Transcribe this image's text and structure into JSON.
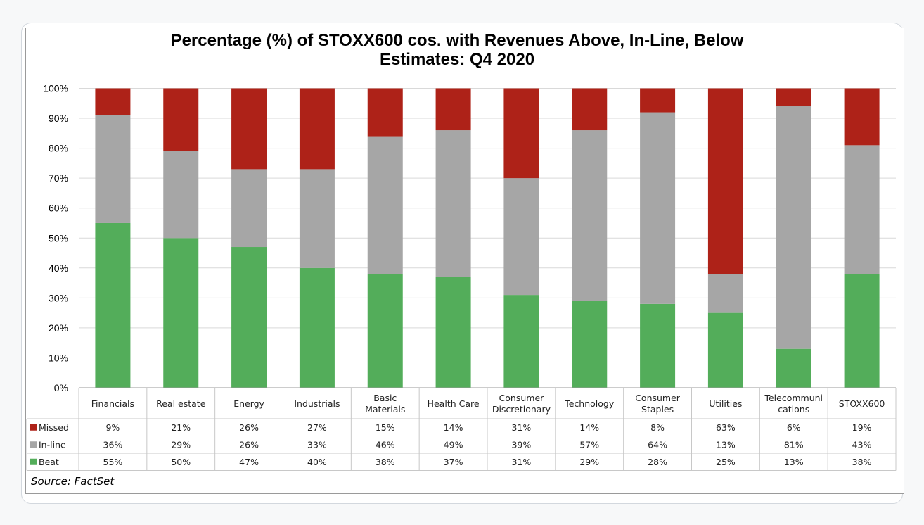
{
  "title_line1": "Percentage (%) of STOXX600 cos. with Revenues Above, In-Line, Below",
  "title_line2": "Estimates: Q4 2020",
  "source": "Source: FactSet",
  "colors": {
    "missed": "#ae2218",
    "inline": "#a6a6a6",
    "beat": "#53ad5a",
    "grid": "#d9d9d9"
  },
  "chart_data": {
    "type": "bar",
    "stacked": true,
    "title": "Percentage (%) of STOXX600 cos. with Revenues Above, In-Line, Below Estimates: Q4 2020",
    "categories": [
      [
        "Financials"
      ],
      [
        "Real estate"
      ],
      [
        "Energy"
      ],
      [
        "Industrials"
      ],
      [
        "Basic",
        "Materials"
      ],
      [
        "Health Care"
      ],
      [
        "Consumer",
        "Discretionary"
      ],
      [
        "Technology"
      ],
      [
        "Consumer",
        "Staples"
      ],
      [
        "Utilities"
      ],
      [
        "Telecommuni",
        "cations"
      ],
      [
        "STOXX600"
      ]
    ],
    "ylim": [
      0,
      100
    ],
    "yticks": [
      "0%",
      "10%",
      "20%",
      "30%",
      "40%",
      "50%",
      "60%",
      "70%",
      "80%",
      "90%",
      "100%"
    ],
    "series": [
      {
        "name": "Missed",
        "color": "#ae2218",
        "values": [
          9,
          21,
          26,
          27,
          15,
          14,
          31,
          14,
          8,
          63,
          6,
          19
        ],
        "labels": [
          "9%",
          "21%",
          "26%",
          "27%",
          "15%",
          "14%",
          "31%",
          "14%",
          "8%",
          "63%",
          "6%",
          "19%"
        ]
      },
      {
        "name": "In-line",
        "color": "#a6a6a6",
        "values": [
          36,
          29,
          26,
          33,
          46,
          49,
          39,
          57,
          64,
          13,
          81,
          43
        ],
        "labels": [
          "36%",
          "29%",
          "26%",
          "33%",
          "46%",
          "49%",
          "39%",
          "57%",
          "64%",
          "13%",
          "81%",
          "43%"
        ]
      },
      {
        "name": "Beat",
        "color": "#53ad5a",
        "values": [
          55,
          50,
          47,
          40,
          38,
          37,
          31,
          29,
          28,
          25,
          13,
          38
        ],
        "labels": [
          "55%",
          "50%",
          "47%",
          "40%",
          "38%",
          "37%",
          "31%",
          "29%",
          "28%",
          "25%",
          "13%",
          "38%"
        ]
      }
    ],
    "stack_order": [
      "Beat",
      "In-line",
      "Missed"
    ],
    "grid": true,
    "legend": "data-table"
  }
}
